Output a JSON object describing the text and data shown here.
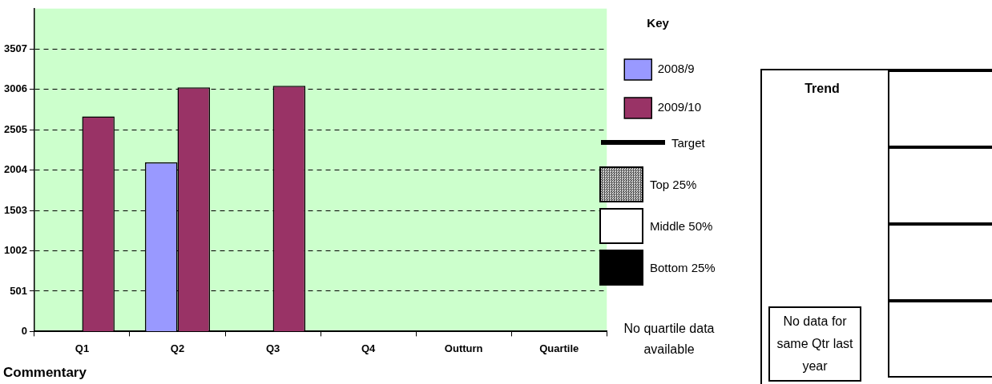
{
  "chart_data": {
    "type": "bar",
    "categories": [
      "Q1",
      "Q2",
      "Q3",
      "Q4",
      "Outturn",
      "Quartile"
    ],
    "series": [
      {
        "name": "2008/9",
        "color": "#9999ff",
        "values": [
          null,
          2100,
          null,
          null,
          null,
          null
        ]
      },
      {
        "name": "2009/10",
        "color": "#993366",
        "values": [
          2670,
          3030,
          3050,
          null,
          null,
          null
        ]
      }
    ],
    "ylim": [
      0,
      4008
    ],
    "yticks": [
      0,
      501,
      1002,
      1503,
      2004,
      2505,
      3006,
      3507
    ],
    "grid": "y",
    "legend": "right",
    "legend_title": "Key",
    "annotations": [
      "Target",
      "Top 25%",
      "Middle 50%",
      "Bottom 25%",
      "No quartile data available",
      "Trend",
      "No data for same Qtr last year",
      "Commentary"
    ]
  }
}
